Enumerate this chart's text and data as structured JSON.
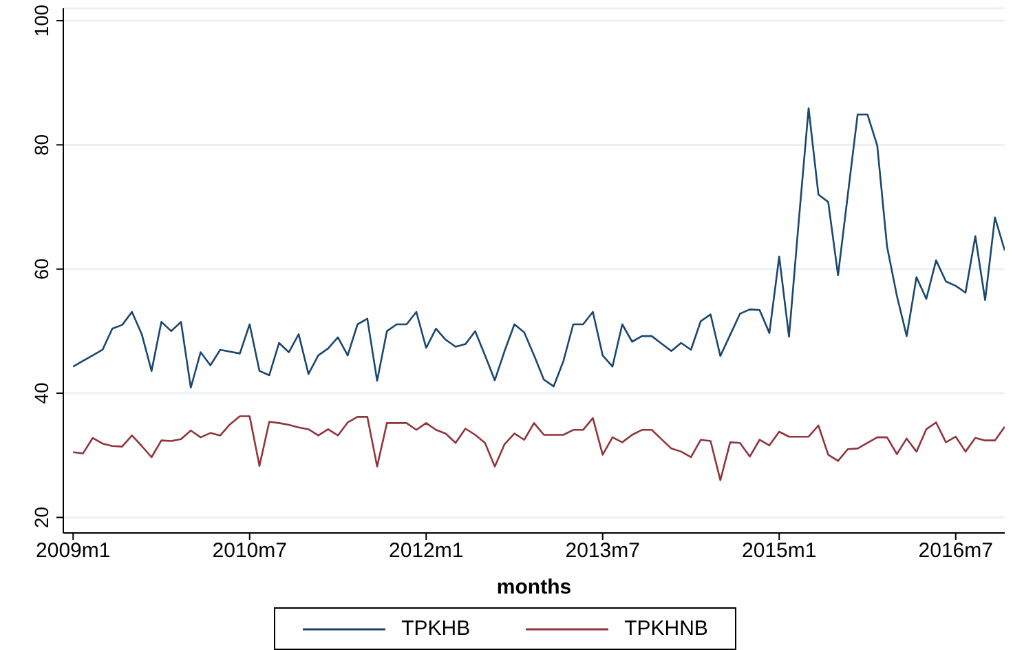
{
  "chart_data": {
    "type": "line",
    "xlabel": "months",
    "x": [
      "2009-01",
      "2009-02",
      "2009-03",
      "2009-04",
      "2009-05",
      "2009-06",
      "2009-07",
      "2009-08",
      "2009-09",
      "2009-10",
      "2009-11",
      "2009-12",
      "2010-01",
      "2010-02",
      "2010-03",
      "2010-04",
      "2010-05",
      "2010-06",
      "2010-07",
      "2010-08",
      "2010-09",
      "2010-10",
      "2010-11",
      "2010-12",
      "2011-01",
      "2011-02",
      "2011-03",
      "2011-04",
      "2011-05",
      "2011-06",
      "2011-07",
      "2011-08",
      "2011-09",
      "2011-10",
      "2011-11",
      "2011-12",
      "2012-01",
      "2012-02",
      "2012-03",
      "2012-04",
      "2012-05",
      "2012-06",
      "2012-07",
      "2012-08",
      "2012-09",
      "2012-10",
      "2012-11",
      "2012-12",
      "2013-01",
      "2013-02",
      "2013-03",
      "2013-04",
      "2013-05",
      "2013-06",
      "2013-07",
      "2013-08",
      "2013-09",
      "2013-10",
      "2013-11",
      "2013-12",
      "2014-01",
      "2014-02",
      "2014-03",
      "2014-04",
      "2014-05",
      "2014-06",
      "2014-07",
      "2014-08",
      "2014-09",
      "2014-10",
      "2014-11",
      "2014-12",
      "2015-01",
      "2015-02",
      "2015-03",
      "2015-04",
      "2015-05",
      "2015-06",
      "2015-07",
      "2015-08",
      "2015-09",
      "2015-10",
      "2015-11",
      "2015-12",
      "2016-01",
      "2016-02",
      "2016-03",
      "2016-04",
      "2016-05",
      "2016-06",
      "2016-07",
      "2016-08",
      "2016-09",
      "2016-10",
      "2016-11",
      "2016-12"
    ],
    "series": [
      {
        "name": "TPKHB",
        "color": "#1a476f",
        "values": [
          44.3,
          45.2,
          46.1,
          47,
          50.4,
          51,
          53.1,
          49.5,
          43.6,
          51.5,
          50,
          51.5,
          40.9,
          46.6,
          44.5,
          47,
          46.7,
          46.4,
          51.1,
          43.6,
          42.9,
          48.1,
          46.6,
          49.5,
          43.1,
          46.1,
          47.2,
          49,
          46.1,
          51.1,
          52,
          42,
          50,
          51.1,
          51.1,
          53.1,
          47.3,
          50.4,
          48.6,
          47.5,
          47.9,
          50,
          46.1,
          42.1,
          46.8,
          51.1,
          49.8,
          46.1,
          42.2,
          41.1,
          45.2,
          51.1,
          51.1,
          53.1,
          46.1,
          44.3,
          51.1,
          48.3,
          49.2,
          49.2,
          48,
          46.8,
          48.1,
          47,
          51.6,
          52.7,
          46,
          49.4,
          52.8,
          53.5,
          53.4,
          49.7,
          62,
          49.1,
          67.8,
          85.9,
          72,
          70.8,
          59,
          72,
          84.9,
          84.9,
          79.9,
          63.6,
          55.7,
          49.2,
          58.7,
          55.2,
          61.4,
          58,
          57.3,
          56.2,
          65.3,
          55,
          68.3,
          63
        ]
      },
      {
        "name": "TPKHNB",
        "color": "#90353b",
        "values": [
          30.5,
          30.3,
          32.8,
          31.9,
          31.5,
          31.4,
          33.2,
          31.5,
          29.7,
          32.4,
          32.3,
          32.6,
          34,
          32.9,
          33.6,
          33.2,
          35,
          36.3,
          36.3,
          28.3,
          35.4,
          35.2,
          34.9,
          34.5,
          34.2,
          33.2,
          34.2,
          33.2,
          35.3,
          36.2,
          36.2,
          28.2,
          35.2,
          35.2,
          35.2,
          34.1,
          35.2,
          34.1,
          33.5,
          32,
          34.3,
          33.3,
          32,
          28.2,
          31.8,
          33.5,
          32.5,
          35.2,
          33.3,
          33.3,
          33.3,
          34.1,
          34.1,
          36,
          30.1,
          32.9,
          32.1,
          33.3,
          34.1,
          34.1,
          32.6,
          31.1,
          30.6,
          29.7,
          32.5,
          32.3,
          26,
          32.1,
          32,
          29.8,
          32.5,
          31.6,
          33.8,
          33,
          33,
          33,
          34.8,
          30.1,
          29.1,
          31,
          31.1,
          32,
          32.9,
          32.9,
          30.2,
          32.7,
          30.6,
          34.2,
          35.3,
          32.1,
          33,
          30.6,
          32.8,
          32.4,
          32.4,
          34.6
        ]
      }
    ],
    "xlim": [
      "2008-12",
      "2016-12"
    ],
    "xticks": [
      {
        "value": "2009-01",
        "label": "2009m1"
      },
      {
        "value": "2010-07",
        "label": "2010m7"
      },
      {
        "value": "2012-01",
        "label": "2012m1"
      },
      {
        "value": "2013-07",
        "label": "2013m7"
      },
      {
        "value": "2015-01",
        "label": "2015m1"
      },
      {
        "value": "2016-07",
        "label": "2016m7"
      }
    ],
    "ylim": [
      17.5,
      102
    ],
    "yticks": [
      20,
      40,
      60,
      80,
      100
    ],
    "grid": "y",
    "legend": "bottom"
  }
}
